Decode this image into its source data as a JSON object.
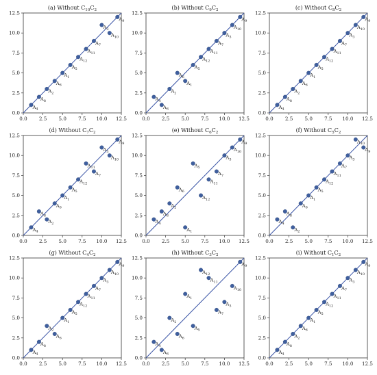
{
  "axis": {
    "min": 0,
    "max": 12.5,
    "ticks": [
      "0.0",
      "2.5",
      "5.0",
      "7.5",
      "10.0",
      "12.5"
    ]
  },
  "colors": {
    "point": "#3f5f9e",
    "line": "#3b55a6",
    "axis": "#333333",
    "grid": "#e6e6e6"
  },
  "chart_data": [
    {
      "type": "scatter",
      "title": "(a) Without C10C2",
      "title_parts": [
        "(a) Without C",
        "10",
        "C",
        "2"
      ],
      "xlim": [
        0,
        12.5
      ],
      "ylim": [
        0,
        12.5
      ],
      "reference_line": "y = x",
      "points": [
        {
          "label": "A4",
          "base": "A",
          "sub": "4",
          "x": 1,
          "y": 1
        },
        {
          "label": "A8",
          "base": "A",
          "sub": "8",
          "x": 2,
          "y": 2
        },
        {
          "label": "A2",
          "base": "A",
          "sub": "2",
          "x": 3,
          "y": 3
        },
        {
          "label": "A6",
          "base": "A",
          "sub": "6",
          "x": 4,
          "y": 4
        },
        {
          "label": "A1",
          "base": "A",
          "sub": "1",
          "x": 5,
          "y": 5
        },
        {
          "label": "A5",
          "base": "A",
          "sub": "5",
          "x": 6,
          "y": 6
        },
        {
          "label": "A12",
          "base": "A",
          "sub": "12",
          "x": 7,
          "y": 7
        },
        {
          "label": "A11",
          "base": "A",
          "sub": "11",
          "x": 8,
          "y": 8
        },
        {
          "label": "A7",
          "base": "A",
          "sub": "7",
          "x": 9,
          "y": 9
        },
        {
          "label": "A3",
          "base": "A",
          "sub": "3",
          "x": 10,
          "y": 11
        },
        {
          "label": "A10",
          "base": "A",
          "sub": "10",
          "x": 11,
          "y": 10
        },
        {
          "label": "A9",
          "base": "A",
          "sub": "9",
          "x": 12,
          "y": 12
        }
      ]
    },
    {
      "type": "scatter",
      "title": "(b) Without C9C2",
      "title_parts": [
        "(b) Without C",
        "9",
        "C",
        "2"
      ],
      "xlim": [
        0,
        12.5
      ],
      "ylim": [
        0,
        12.5
      ],
      "reference_line": "y = x",
      "points": [
        {
          "label": "A4",
          "base": "A",
          "sub": "4",
          "x": 1,
          "y": 2
        },
        {
          "label": "A8",
          "base": "A",
          "sub": "8",
          "x": 2,
          "y": 1
        },
        {
          "label": "A2",
          "base": "A",
          "sub": "2",
          "x": 3,
          "y": 3
        },
        {
          "label": "A6",
          "base": "A",
          "sub": "6",
          "x": 4,
          "y": 5
        },
        {
          "label": "A1",
          "base": "A",
          "sub": "1",
          "x": 5,
          "y": 4
        },
        {
          "label": "A5",
          "base": "A",
          "sub": "5",
          "x": 6,
          "y": 6
        },
        {
          "label": "A12",
          "base": "A",
          "sub": "12",
          "x": 7,
          "y": 7
        },
        {
          "label": "A11",
          "base": "A",
          "sub": "11",
          "x": 8,
          "y": 8
        },
        {
          "label": "A7",
          "base": "A",
          "sub": "7",
          "x": 9,
          "y": 9
        },
        {
          "label": "A3",
          "base": "A",
          "sub": "3",
          "x": 10,
          "y": 10
        },
        {
          "label": "A10",
          "base": "A",
          "sub": "10",
          "x": 11,
          "y": 11
        },
        {
          "label": "A9",
          "base": "A",
          "sub": "9",
          "x": 12,
          "y": 12
        }
      ]
    },
    {
      "type": "scatter",
      "title": "(c) Without C8C2",
      "title_parts": [
        "(c) Without C",
        "8",
        "C",
        "2"
      ],
      "xlim": [
        0,
        12.5
      ],
      "ylim": [
        0,
        12.5
      ],
      "reference_line": "y = x",
      "points": [
        {
          "label": "A4",
          "base": "A",
          "sub": "4",
          "x": 1,
          "y": 1
        },
        {
          "label": "A8",
          "base": "A",
          "sub": "8",
          "x": 2,
          "y": 2
        },
        {
          "label": "A2",
          "base": "A",
          "sub": "2",
          "x": 3,
          "y": 3
        },
        {
          "label": "A6",
          "base": "A",
          "sub": "6",
          "x": 4,
          "y": 4
        },
        {
          "label": "A1",
          "base": "A",
          "sub": "1",
          "x": 5,
          "y": 5
        },
        {
          "label": "A5",
          "base": "A",
          "sub": "5",
          "x": 6,
          "y": 6
        },
        {
          "label": "A12",
          "base": "A",
          "sub": "12",
          "x": 7,
          "y": 7
        },
        {
          "label": "A11",
          "base": "A",
          "sub": "11",
          "x": 8,
          "y": 8
        },
        {
          "label": "A7",
          "base": "A",
          "sub": "7",
          "x": 9,
          "y": 9
        },
        {
          "label": "A3",
          "base": "A",
          "sub": "3",
          "x": 10,
          "y": 10
        },
        {
          "label": "A10",
          "base": "A",
          "sub": "10",
          "x": 11,
          "y": 11
        },
        {
          "label": "A9",
          "base": "A",
          "sub": "9",
          "x": 12,
          "y": 12
        }
      ]
    },
    {
      "type": "scatter",
      "title": "(d) Without C7C2",
      "title_parts": [
        "(d) Without C",
        "7",
        "C",
        "2"
      ],
      "xlim": [
        0,
        12.5
      ],
      "ylim": [
        0,
        12.5
      ],
      "reference_line": "y = x",
      "points": [
        {
          "label": "A4",
          "base": "A",
          "sub": "4",
          "x": 1,
          "y": 1
        },
        {
          "label": "A8",
          "base": "A",
          "sub": "8",
          "x": 2,
          "y": 3
        },
        {
          "label": "A2",
          "base": "A",
          "sub": "2",
          "x": 3,
          "y": 2
        },
        {
          "label": "A6",
          "base": "A",
          "sub": "6",
          "x": 4,
          "y": 4
        },
        {
          "label": "A1",
          "base": "A",
          "sub": "1",
          "x": 5,
          "y": 5
        },
        {
          "label": "A5",
          "base": "A",
          "sub": "5",
          "x": 6,
          "y": 6
        },
        {
          "label": "A12",
          "base": "A",
          "sub": "12",
          "x": 7,
          "y": 7
        },
        {
          "label": "A11",
          "base": "A",
          "sub": "11",
          "x": 8,
          "y": 9
        },
        {
          "label": "A7",
          "base": "A",
          "sub": "7",
          "x": 9,
          "y": 8
        },
        {
          "label": "A3",
          "base": "A",
          "sub": "3",
          "x": 10,
          "y": 11
        },
        {
          "label": "A10",
          "base": "A",
          "sub": "10",
          "x": 11,
          "y": 10
        },
        {
          "label": "A9",
          "base": "A",
          "sub": "9",
          "x": 12,
          "y": 12
        }
      ]
    },
    {
      "type": "scatter",
      "title": "(e) Without C6C2",
      "title_parts": [
        "(e) Without C",
        "6",
        "C",
        "2"
      ],
      "xlim": [
        0,
        12.5
      ],
      "ylim": [
        0,
        12.5
      ],
      "reference_line": "y = x",
      "points": [
        {
          "label": "A4",
          "base": "A",
          "sub": "4",
          "x": 1,
          "y": 2
        },
        {
          "label": "A8",
          "base": "A",
          "sub": "8",
          "x": 2,
          "y": 3
        },
        {
          "label": "A2",
          "base": "A",
          "sub": "2",
          "x": 3,
          "y": 4
        },
        {
          "label": "A6",
          "base": "A",
          "sub": "6",
          "x": 4,
          "y": 6
        },
        {
          "label": "A1",
          "base": "A",
          "sub": "1",
          "x": 5,
          "y": 1
        },
        {
          "label": "A5",
          "base": "A",
          "sub": "5",
          "x": 6,
          "y": 9
        },
        {
          "label": "A12",
          "base": "A",
          "sub": "12",
          "x": 7,
          "y": 5
        },
        {
          "label": "A11",
          "base": "A",
          "sub": "11",
          "x": 8,
          "y": 7
        },
        {
          "label": "A7",
          "base": "A",
          "sub": "7",
          "x": 9,
          "y": 8
        },
        {
          "label": "A3",
          "base": "A",
          "sub": "3",
          "x": 10,
          "y": 10
        },
        {
          "label": "A10",
          "base": "A",
          "sub": "10",
          "x": 11,
          "y": 11
        },
        {
          "label": "A9",
          "base": "A",
          "sub": "9",
          "x": 12,
          "y": 12
        }
      ]
    },
    {
      "type": "scatter",
      "title": "(f) Without C5C2",
      "title_parts": [
        "(f) Without C",
        "5",
        "C",
        "2"
      ],
      "xlim": [
        0,
        12.5
      ],
      "ylim": [
        0,
        12.5
      ],
      "reference_line": "y = x",
      "points": [
        {
          "label": "A4",
          "base": "A",
          "sub": "4",
          "x": 1,
          "y": 2
        },
        {
          "label": "A8",
          "base": "A",
          "sub": "8",
          "x": 2,
          "y": 3
        },
        {
          "label": "A2",
          "base": "A",
          "sub": "2",
          "x": 3,
          "y": 1
        },
        {
          "label": "A6",
          "base": "A",
          "sub": "6",
          "x": 4,
          "y": 4
        },
        {
          "label": "A1",
          "base": "A",
          "sub": "1",
          "x": 5,
          "y": 5
        },
        {
          "label": "A5",
          "base": "A",
          "sub": "5",
          "x": 6,
          "y": 6
        },
        {
          "label": "A12",
          "base": "A",
          "sub": "12",
          "x": 7,
          "y": 7
        },
        {
          "label": "A11",
          "base": "A",
          "sub": "11",
          "x": 8,
          "y": 8
        },
        {
          "label": "A7",
          "base": "A",
          "sub": "7",
          "x": 9,
          "y": 9
        },
        {
          "label": "A3",
          "base": "A",
          "sub": "3",
          "x": 10,
          "y": 10
        },
        {
          "label": "A10",
          "base": "A",
          "sub": "10",
          "x": 11,
          "y": 12
        },
        {
          "label": "A9",
          "base": "A",
          "sub": "9",
          "x": 12,
          "y": 11
        }
      ]
    },
    {
      "type": "scatter",
      "title": "(g) Without C4C2",
      "title_parts": [
        "(g) Without C",
        "4",
        "C",
        "2"
      ],
      "xlim": [
        0,
        12.5
      ],
      "ylim": [
        0,
        12.5
      ],
      "reference_line": "y = x",
      "points": [
        {
          "label": "A4",
          "base": "A",
          "sub": "4",
          "x": 1,
          "y": 1
        },
        {
          "label": "A8",
          "base": "A",
          "sub": "8",
          "x": 2,
          "y": 2
        },
        {
          "label": "A2",
          "base": "A",
          "sub": "2",
          "x": 3,
          "y": 4
        },
        {
          "label": "A6",
          "base": "A",
          "sub": "6",
          "x": 4,
          "y": 3
        },
        {
          "label": "A1",
          "base": "A",
          "sub": "1",
          "x": 5,
          "y": 5
        },
        {
          "label": "A5",
          "base": "A",
          "sub": "5",
          "x": 6,
          "y": 6
        },
        {
          "label": "A12",
          "base": "A",
          "sub": "12",
          "x": 7,
          "y": 7
        },
        {
          "label": "A11",
          "base": "A",
          "sub": "11",
          "x": 8,
          "y": 8
        },
        {
          "label": "A7",
          "base": "A",
          "sub": "7",
          "x": 9,
          "y": 9
        },
        {
          "label": "A3",
          "base": "A",
          "sub": "3",
          "x": 10,
          "y": 10
        },
        {
          "label": "A10",
          "base": "A",
          "sub": "10",
          "x": 11,
          "y": 11
        },
        {
          "label": "A9",
          "base": "A",
          "sub": "9",
          "x": 12,
          "y": 12
        }
      ]
    },
    {
      "type": "scatter",
      "title": "(h) Without C3C2",
      "title_parts": [
        "(h) Without C",
        "3",
        "C",
        "2"
      ],
      "xlim": [
        0,
        12.5
      ],
      "ylim": [
        0,
        12.5
      ],
      "reference_line": "y = x",
      "points": [
        {
          "label": "A4",
          "base": "A",
          "sub": "4",
          "x": 1,
          "y": 2
        },
        {
          "label": "A8",
          "base": "A",
          "sub": "8",
          "x": 2,
          "y": 1
        },
        {
          "label": "A2",
          "base": "A",
          "sub": "2",
          "x": 3,
          "y": 5
        },
        {
          "label": "A6",
          "base": "A",
          "sub": "6",
          "x": 4,
          "y": 3
        },
        {
          "label": "A1",
          "base": "A",
          "sub": "1",
          "x": 5,
          "y": 8
        },
        {
          "label": "A5",
          "base": "A",
          "sub": "5",
          "x": 6,
          "y": 4
        },
        {
          "label": "A12",
          "base": "A",
          "sub": "12",
          "x": 7,
          "y": 11
        },
        {
          "label": "A11",
          "base": "A",
          "sub": "11",
          "x": 8,
          "y": 10
        },
        {
          "label": "A7",
          "base": "A",
          "sub": "7",
          "x": 9,
          "y": 6
        },
        {
          "label": "A3",
          "base": "A",
          "sub": "3",
          "x": 10,
          "y": 7
        },
        {
          "label": "A10",
          "base": "A",
          "sub": "10",
          "x": 11,
          "y": 9
        },
        {
          "label": "A9",
          "base": "A",
          "sub": "9",
          "x": 12,
          "y": 12
        }
      ]
    },
    {
      "type": "scatter",
      "title": "(i) Without C1C2",
      "title_parts": [
        "(i) Without C",
        "1",
        "C",
        "2"
      ],
      "xlim": [
        0,
        12.5
      ],
      "ylim": [
        0,
        12.5
      ],
      "reference_line": "y = x",
      "points": [
        {
          "label": "A4",
          "base": "A",
          "sub": "4",
          "x": 1,
          "y": 1
        },
        {
          "label": "A8",
          "base": "A",
          "sub": "8",
          "x": 2,
          "y": 2
        },
        {
          "label": "A2",
          "base": "A",
          "sub": "2",
          "x": 3,
          "y": 3
        },
        {
          "label": "A6",
          "base": "A",
          "sub": "6",
          "x": 4,
          "y": 4
        },
        {
          "label": "A1",
          "base": "A",
          "sub": "1",
          "x": 5,
          "y": 5
        },
        {
          "label": "A5",
          "base": "A",
          "sub": "5",
          "x": 6,
          "y": 6
        },
        {
          "label": "A12",
          "base": "A",
          "sub": "12",
          "x": 7,
          "y": 7
        },
        {
          "label": "A11",
          "base": "A",
          "sub": "11",
          "x": 8,
          "y": 8
        },
        {
          "label": "A7",
          "base": "A",
          "sub": "7",
          "x": 9,
          "y": 9
        },
        {
          "label": "A3",
          "base": "A",
          "sub": "3",
          "x": 10,
          "y": 10
        },
        {
          "label": "A10",
          "base": "A",
          "sub": "10",
          "x": 11,
          "y": 11
        },
        {
          "label": "A9",
          "base": "A",
          "sub": "9",
          "x": 12,
          "y": 12
        }
      ]
    }
  ]
}
